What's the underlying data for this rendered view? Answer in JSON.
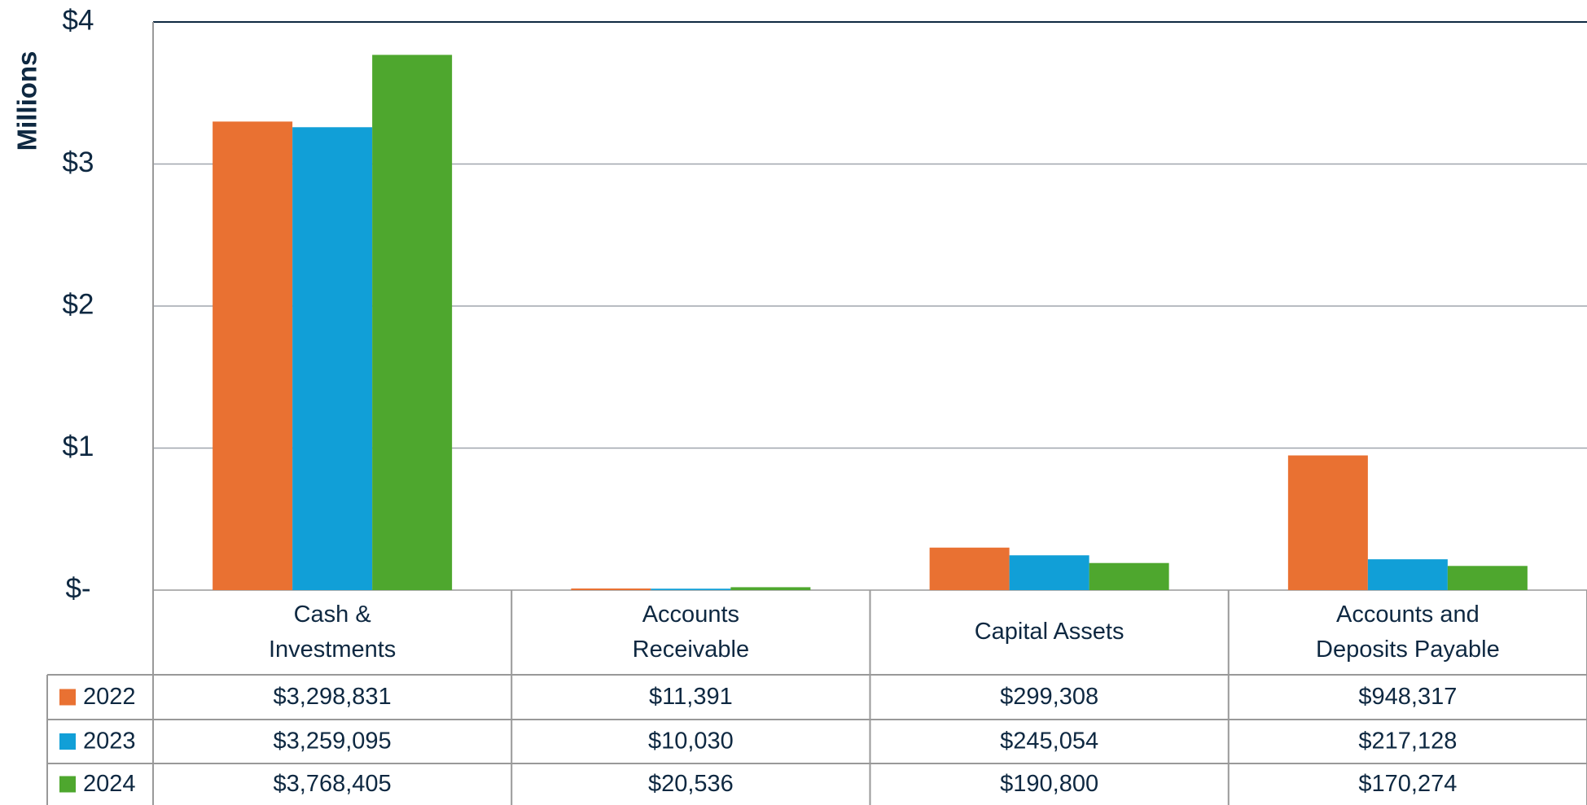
{
  "chart_data": {
    "type": "bar",
    "y_axis_label": "Millions",
    "categories": [
      "Cash & Investments",
      "Accounts Receivable",
      "Capital Assets",
      "Accounts and Deposits Payable"
    ],
    "series": [
      {
        "name": "2022",
        "color": "#E97132",
        "values": [
          3.298831,
          0.011391,
          0.299308,
          0.948317
        ],
        "value_labels": [
          "$3,298,831",
          "$11,391",
          "$299,308",
          "$948,317"
        ]
      },
      {
        "name": "2023",
        "color": "#119FD7",
        "values": [
          3.259095,
          0.01003,
          0.245054,
          0.217128
        ],
        "value_labels": [
          "$3,259,095",
          "$10,030",
          "$245,054",
          "$217,128"
        ]
      },
      {
        "name": "2024",
        "color": "#4EA72E",
        "values": [
          3.768405,
          0.020536,
          0.1908,
          0.170274
        ],
        "value_labels": [
          "$3,768,405",
          "$20,536",
          "$190,800",
          "$170,274"
        ]
      }
    ],
    "ylim": [
      0,
      4
    ],
    "yticks": [
      {
        "value": 0,
        "label": "$-"
      },
      {
        "value": 1,
        "label": "$1"
      },
      {
        "value": 2,
        "label": "$2"
      },
      {
        "value": 3,
        "label": "$3"
      },
      {
        "value": 4,
        "label": "$4"
      }
    ],
    "grid": true
  }
}
